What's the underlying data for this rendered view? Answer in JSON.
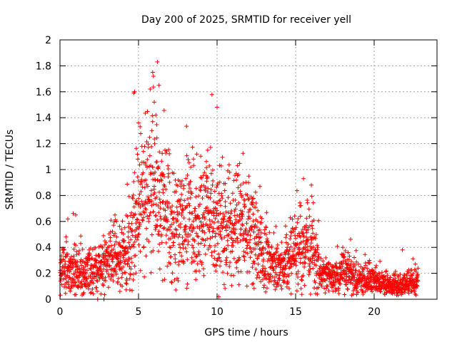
{
  "chart_data": {
    "type": "scatter",
    "title": "Day 200 of 2025, SRMTID for receiver yell",
    "xlabel": "GPS time / hours",
    "ylabel": "SRMTID / TECUs",
    "xlim": [
      0,
      24
    ],
    "ylim": [
      0,
      2
    ],
    "xticks": [
      0,
      5,
      10,
      15,
      20
    ],
    "yticks": [
      0,
      0.2,
      0.4,
      0.6,
      0.8,
      1,
      1.2,
      1.4,
      1.6,
      1.8,
      2
    ],
    "xtick_labels": [
      "0",
      "5",
      "10",
      "15",
      "20"
    ],
    "ytick_labels": [
      "0",
      "0.2",
      "0.4",
      "0.6",
      "0.8",
      "1",
      "1.2",
      "1.4",
      "1.6",
      "1.8",
      "2"
    ],
    "grid": true,
    "marker": "+",
    "color": "#ff0000",
    "profile": [
      [
        0.0,
        0.22,
        0.12
      ],
      [
        0.5,
        0.24,
        0.14
      ],
      [
        1.0,
        0.22,
        0.12
      ],
      [
        1.5,
        0.2,
        0.1
      ],
      [
        2.0,
        0.24,
        0.12
      ],
      [
        2.5,
        0.22,
        0.1
      ],
      [
        3.0,
        0.28,
        0.12
      ],
      [
        3.5,
        0.32,
        0.16
      ],
      [
        4.0,
        0.3,
        0.14
      ],
      [
        4.5,
        0.45,
        0.25
      ],
      [
        5.0,
        0.75,
        0.3
      ],
      [
        5.5,
        0.85,
        0.3
      ],
      [
        6.0,
        0.8,
        0.3
      ],
      [
        6.5,
        0.75,
        0.3
      ],
      [
        7.0,
        0.6,
        0.28
      ],
      [
        7.5,
        0.5,
        0.25
      ],
      [
        8.0,
        0.6,
        0.28
      ],
      [
        8.5,
        0.65,
        0.28
      ],
      [
        9.0,
        0.6,
        0.25
      ],
      [
        9.5,
        0.65,
        0.28
      ],
      [
        10.0,
        0.6,
        0.28
      ],
      [
        10.5,
        0.55,
        0.25
      ],
      [
        11.0,
        0.5,
        0.25
      ],
      [
        11.5,
        0.55,
        0.25
      ],
      [
        12.0,
        0.55,
        0.22
      ],
      [
        12.5,
        0.4,
        0.2
      ],
      [
        13.0,
        0.3,
        0.15
      ],
      [
        13.5,
        0.28,
        0.12
      ],
      [
        14.0,
        0.25,
        0.12
      ],
      [
        14.5,
        0.3,
        0.15
      ],
      [
        15.0,
        0.38,
        0.18
      ],
      [
        15.5,
        0.4,
        0.2
      ],
      [
        16.0,
        0.45,
        0.22
      ],
      [
        16.5,
        0.22,
        0.1
      ],
      [
        17.0,
        0.18,
        0.08
      ],
      [
        17.5,
        0.17,
        0.08
      ],
      [
        18.0,
        0.2,
        0.1
      ],
      [
        18.5,
        0.2,
        0.1
      ],
      [
        19.0,
        0.16,
        0.07
      ],
      [
        19.5,
        0.15,
        0.07
      ],
      [
        20.0,
        0.14,
        0.06
      ],
      [
        20.5,
        0.13,
        0.06
      ],
      [
        21.0,
        0.11,
        0.05
      ],
      [
        21.5,
        0.1,
        0.05
      ],
      [
        22.0,
        0.12,
        0.06
      ],
      [
        22.5,
        0.14,
        0.07
      ],
      [
        22.8,
        0.15,
        0.07
      ]
    ],
    "highlights": [
      [
        4.7,
        1.59
      ],
      [
        4.75,
        1.6
      ],
      [
        5.9,
        1.75
      ],
      [
        5.95,
        1.72
      ],
      [
        6.2,
        1.83
      ],
      [
        6.0,
        1.52
      ],
      [
        6.3,
        1.65
      ],
      [
        10.0,
        1.48
      ],
      [
        5.0,
        1.36
      ],
      [
        5.1,
        1.33
      ],
      [
        6.1,
        1.42
      ],
      [
        5.85,
        1.3
      ],
      [
        9.4,
        1.15
      ],
      [
        15.5,
        0.93
      ],
      [
        12.0,
        0.9
      ],
      [
        11.5,
        0.88
      ],
      [
        1.0,
        0.65
      ],
      [
        0.5,
        0.62
      ],
      [
        3.5,
        0.65
      ],
      [
        3.6,
        0.6
      ],
      [
        16.0,
        0.88
      ],
      [
        21.8,
        0.38
      ],
      [
        18.0,
        0.4
      ],
      [
        10.1,
        0.02
      ],
      [
        2.8,
        0.0
      ],
      [
        2.4,
        0.0
      ]
    ]
  }
}
